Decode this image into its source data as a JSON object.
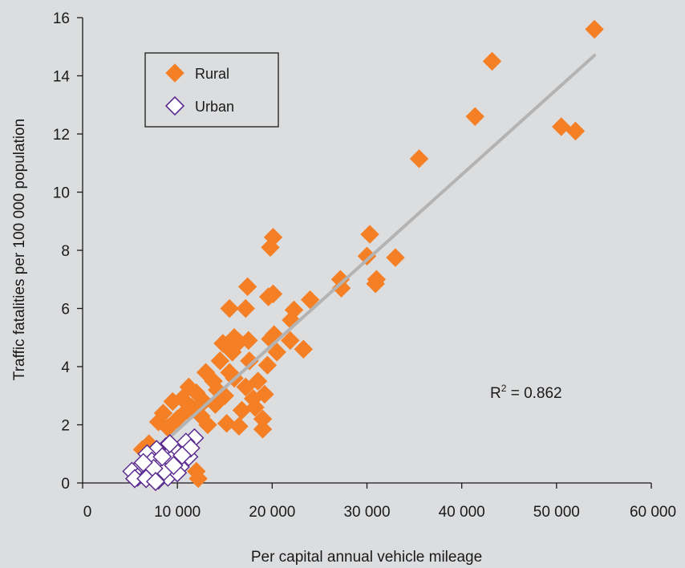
{
  "chart_data": {
    "type": "scatter",
    "xlabel": "Per capital annual vehicle mileage",
    "ylabel": "Traffic fatalities per 100 000 population",
    "xlim": [
      0,
      60000
    ],
    "ylim": [
      0,
      16
    ],
    "xticks": [
      0,
      10000,
      20000,
      30000,
      40000,
      50000,
      60000
    ],
    "xtick_labels": [
      "0",
      "10 000",
      "20 000",
      "30 000",
      "40 000",
      "50 000",
      "60 000"
    ],
    "yticks": [
      0,
      2,
      4,
      6,
      8,
      10,
      12,
      14,
      16
    ],
    "ytick_labels": [
      "0",
      "2",
      "4",
      "6",
      "8",
      "10",
      "12",
      "14",
      "16"
    ],
    "grid": false,
    "legend_position": "top-left",
    "annotation": {
      "r2_label": "R",
      "r2_sup": "2",
      "r2_value": " = 0.862"
    },
    "trendline": {
      "x": [
        5000,
        54000
      ],
      "y": [
        0.35,
        14.7
      ],
      "color": "#b3b3b3"
    },
    "series": [
      {
        "name": "Rural",
        "color": "#f47f24",
        "marker": "diamond-filled",
        "points": [
          [
            54000,
            15.6
          ],
          [
            43200,
            14.5
          ],
          [
            41400,
            12.6
          ],
          [
            50500,
            12.25
          ],
          [
            52000,
            12.1
          ],
          [
            35500,
            11.15
          ],
          [
            30300,
            8.55
          ],
          [
            30000,
            7.8
          ],
          [
            33000,
            7.75
          ],
          [
            31000,
            7.0
          ],
          [
            30900,
            6.85
          ],
          [
            27200,
            7.0
          ],
          [
            27300,
            6.7
          ],
          [
            20100,
            8.45
          ],
          [
            19800,
            8.1
          ],
          [
            24000,
            6.3
          ],
          [
            17400,
            6.75
          ],
          [
            20100,
            6.5
          ],
          [
            19600,
            6.4
          ],
          [
            15500,
            6.0
          ],
          [
            17200,
            6.0
          ],
          [
            22300,
            5.95
          ],
          [
            22000,
            5.6
          ],
          [
            20200,
            5.1
          ],
          [
            21900,
            4.9
          ],
          [
            19800,
            4.95
          ],
          [
            23300,
            4.6
          ],
          [
            20500,
            4.5
          ],
          [
            16000,
            5.0
          ],
          [
            17500,
            4.9
          ],
          [
            14800,
            4.8
          ],
          [
            16500,
            4.85
          ],
          [
            15800,
            4.5
          ],
          [
            17600,
            4.2
          ],
          [
            19500,
            4.05
          ],
          [
            18500,
            3.5
          ],
          [
            19200,
            3.05
          ],
          [
            18000,
            2.9
          ],
          [
            17200,
            3.3
          ],
          [
            19000,
            2.2
          ],
          [
            19000,
            1.85
          ],
          [
            16500,
            1.95
          ],
          [
            15200,
            2.05
          ],
          [
            13000,
            3.8
          ],
          [
            13800,
            3.5
          ],
          [
            11200,
            3.3
          ],
          [
            12000,
            3.1
          ],
          [
            10500,
            2.9
          ],
          [
            9500,
            2.8
          ],
          [
            8500,
            2.4
          ],
          [
            8000,
            2.1
          ],
          [
            10000,
            2.2
          ],
          [
            11500,
            2.6
          ],
          [
            12500,
            2.3
          ],
          [
            14000,
            2.7
          ],
          [
            15000,
            3.0
          ],
          [
            16000,
            3.6
          ],
          [
            14500,
            4.2
          ],
          [
            13200,
            2.0
          ],
          [
            12000,
            0.4
          ],
          [
            12200,
            0.15
          ],
          [
            7000,
            1.35
          ],
          [
            6300,
            1.15
          ],
          [
            9000,
            1.9
          ],
          [
            16800,
            2.5
          ],
          [
            18200,
            2.6
          ],
          [
            15500,
            3.8
          ],
          [
            14200,
            3.2
          ],
          [
            12800,
            2.8
          ],
          [
            11000,
            2.5
          ]
        ]
      },
      {
        "name": "Urban",
        "color": "#5b2d90",
        "marker": "diamond-open",
        "points": [
          [
            11800,
            1.55
          ],
          [
            10800,
            1.3
          ],
          [
            9800,
            1.1
          ],
          [
            8800,
            1.25
          ],
          [
            7800,
            1.15
          ],
          [
            6800,
            1.0
          ],
          [
            7300,
            0.75
          ],
          [
            8300,
            0.65
          ],
          [
            9300,
            0.8
          ],
          [
            10300,
            0.55
          ],
          [
            11200,
            0.9
          ],
          [
            6000,
            0.55
          ],
          [
            5200,
            0.4
          ],
          [
            5800,
            0.2
          ],
          [
            7000,
            0.3
          ],
          [
            8000,
            0.1
          ],
          [
            9000,
            0.2
          ],
          [
            10000,
            0.35
          ],
          [
            8600,
            0.4
          ],
          [
            7500,
            0.5
          ],
          [
            6400,
            0.7
          ],
          [
            9600,
            0.6
          ],
          [
            10900,
            1.4
          ],
          [
            11400,
            1.2
          ],
          [
            8400,
            0.9
          ],
          [
            5500,
            0.15
          ],
          [
            6700,
            0.15
          ],
          [
            7700,
            0.05
          ],
          [
            9200,
            1.35
          ],
          [
            10500,
            0.95
          ]
        ]
      }
    ]
  }
}
